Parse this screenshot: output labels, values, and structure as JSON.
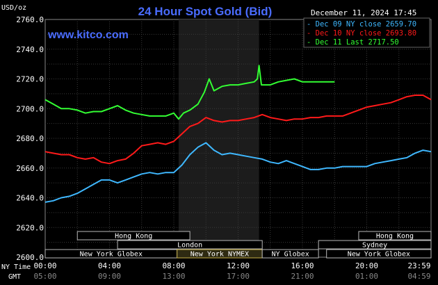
{
  "header": {
    "unit_label": "USD/oz",
    "title": "24 Hour Spot Gold (Bid)",
    "site": "www.kitco.com",
    "date": "December 11, 2024 17:45"
  },
  "chart_data": {
    "type": "line",
    "title": "24 Hour Spot Gold (Bid)",
    "ylabel": "USD/oz",
    "ylim": [
      2600,
      2760
    ],
    "y_ticks": [
      "2760.0",
      "2740.0",
      "2720.0",
      "2700.0",
      "2680.0",
      "2660.0",
      "2640.0",
      "2620.0",
      "2600.0"
    ],
    "x_ticks_ny": [
      "00:00",
      "04:00",
      "08:00",
      "12:00",
      "16:00",
      "20:00",
      "23:59"
    ],
    "x_ticks_gmt": [
      "05:00",
      "09:00",
      "13:00",
      "17:00",
      "21:00",
      "01:00",
      "04:59"
    ],
    "xlabel_ny": "NY Time",
    "xlabel_gmt": "GMT",
    "grid": true,
    "legend_position": "top-right",
    "highlight_region_hours": [
      8.3,
      13.3
    ],
    "sessions": [
      {
        "name": "Hong Kong",
        "row": 0,
        "start": 2.0,
        "end": 9.0,
        "active": false
      },
      {
        "name": "Hong Kong",
        "row": 0,
        "start": 19.5,
        "end": 24.0,
        "active": false
      },
      {
        "name": "London",
        "row": 1,
        "start": 4.5,
        "end": 13.5,
        "active": false
      },
      {
        "name": "Sydney",
        "row": 1,
        "start": 17.0,
        "end": 24.0,
        "active": false
      },
      {
        "name": "New York Globex",
        "row": 2,
        "start": 0.0,
        "end": 8.2,
        "active": false
      },
      {
        "name": "New York NYMEX",
        "row": 2,
        "start": 8.2,
        "end": 13.5,
        "active": true
      },
      {
        "name": "NY Globex",
        "row": 2,
        "start": 13.5,
        "end": 17.0,
        "active": false
      },
      {
        "name": "New York Globex",
        "row": 2,
        "start": 17.5,
        "end": 24.0,
        "active": false
      }
    ],
    "series": [
      {
        "name": "Dec 09 NY close 2659.70",
        "color": "#3fb8ff",
        "x": [
          0,
          0.5,
          1,
          1.5,
          2,
          2.5,
          3,
          3.5,
          4,
          4.5,
          5,
          5.5,
          6,
          6.5,
          7,
          7.5,
          8,
          8.5,
          9,
          9.5,
          10,
          10.5,
          11,
          11.5,
          12,
          12.5,
          13,
          13.5,
          14,
          14.5,
          15,
          15.5,
          16,
          16.5,
          17,
          17.5,
          18,
          18.5,
          19,
          19.5,
          20,
          20.5,
          21,
          21.5,
          22,
          22.5,
          23,
          23.5,
          24
        ],
        "y": [
          2637,
          2638,
          2640,
          2641,
          2643,
          2646,
          2649,
          2652,
          2652,
          2650,
          2652,
          2654,
          2656,
          2657,
          2656,
          2657,
          2657,
          2662,
          2669,
          2674,
          2677,
          2672,
          2669,
          2670,
          2669,
          2668,
          2667,
          2666,
          2664,
          2663,
          2665,
          2663,
          2661,
          2659,
          2659,
          2660,
          2660,
          2661,
          2661,
          2661,
          2661,
          2663,
          2664,
          2665,
          2666,
          2667,
          2670,
          2672,
          2671
        ]
      },
      {
        "name": "Dec 10 NY close 2693.80",
        "color": "#ff1a1a",
        "x": [
          0,
          0.5,
          1,
          1.5,
          2,
          2.5,
          3,
          3.5,
          4,
          4.5,
          5,
          5.5,
          6,
          6.5,
          7,
          7.5,
          8,
          8.5,
          9,
          9.5,
          10,
          10.5,
          11,
          11.5,
          12,
          12.5,
          13,
          13.5,
          14,
          14.5,
          15,
          15.5,
          16,
          16.5,
          17,
          17.5,
          18,
          18.5,
          19,
          19.5,
          20,
          20.5,
          21,
          21.5,
          22,
          22.5,
          23,
          23.5,
          24
        ],
        "y": [
          2671,
          2670,
          2669,
          2669,
          2667,
          2666,
          2667,
          2664,
          2663,
          2665,
          2666,
          2670,
          2675,
          2676,
          2677,
          2676,
          2678,
          2683,
          2688,
          2690,
          2694,
          2692,
          2691,
          2692,
          2692,
          2693,
          2694,
          2696,
          2694,
          2693,
          2692,
          2693,
          2693,
          2694,
          2694,
          2695,
          2695,
          2695,
          2697,
          2699,
          2701,
          2702,
          2703,
          2704,
          2706,
          2708,
          2709,
          2709,
          2706
        ]
      },
      {
        "name": "Dec 11 Last 2717.50",
        "color": "#33ff33",
        "x": [
          0,
          0.5,
          1,
          1.5,
          2,
          2.5,
          3,
          3.5,
          4,
          4.5,
          5,
          5.5,
          6,
          6.5,
          7,
          7.5,
          8,
          8.3,
          8.6,
          9,
          9.5,
          9.9,
          10.2,
          10.5,
          11,
          11.5,
          12,
          12.5,
          13,
          13.2,
          13.3,
          13.45,
          13.7,
          14,
          14.5,
          15,
          15.5,
          16,
          16.5,
          17,
          17.5,
          18
        ],
        "y": [
          2706,
          2703,
          2700,
          2700,
          2699,
          2697,
          2698,
          2698,
          2700,
          2702,
          2699,
          2697,
          2696,
          2695,
          2695,
          2695,
          2697,
          2693,
          2697,
          2699,
          2703,
          2711,
          2720,
          2712,
          2715,
          2716,
          2716,
          2717,
          2718,
          2720,
          2729,
          2716,
          2716,
          2716,
          2718,
          2719,
          2720,
          2718,
          2718,
          2718,
          2718,
          2718
        ]
      }
    ]
  }
}
